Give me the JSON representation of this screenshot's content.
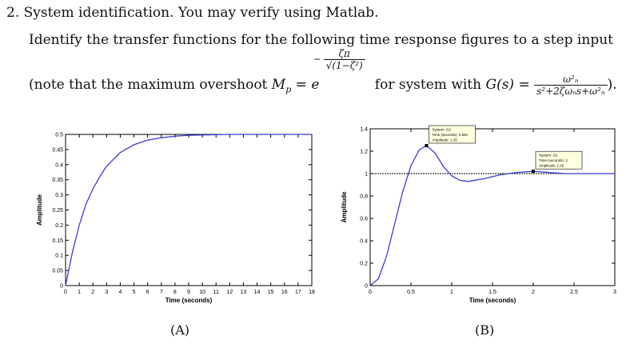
{
  "question": {
    "title": "2. System identification. You may verify using Matlab.",
    "subtitle": "Identify the transfer functions for the following time response figures to a step input",
    "note_prefix": "(note that the maximum overshoot ",
    "mp_symbol": "M",
    "mp_subscript": "p",
    "equals_e": "= e",
    "exponent_numerator": "ζπ",
    "exponent_denominator": "√(1−ζ²)",
    "exponent_sign": "−",
    "for_system": " for system with ",
    "gs": "G(s) =",
    "tf_numerator": "ω²ₙ",
    "tf_denominator": "s²+2ζωₙs+ω²ₙ",
    "note_suffix": ")."
  },
  "chart_data": [
    {
      "type": "line",
      "caption": "(A)",
      "xlabel": "Time (seconds)",
      "ylabel": "Amplitude",
      "xlim": [
        0,
        18
      ],
      "ylim": [
        0,
        0.5
      ],
      "xticks": [
        "0",
        "1",
        "2",
        "3",
        "4",
        "5",
        "6",
        "7",
        "8",
        "9",
        "10",
        "11",
        "12",
        "13",
        "14",
        "15",
        "16",
        "17",
        "18"
      ],
      "yticks": [
        "0",
        "0.05",
        "0.1",
        "0.15",
        "0.2",
        "0.25",
        "0.3",
        "0.35",
        "0.4",
        "0.45",
        "0.5"
      ],
      "series": [
        {
          "color": "#3b3bd6",
          "x": [
            0,
            0.5,
            1,
            1.5,
            2,
            2.5,
            3,
            4,
            5,
            6,
            7,
            8,
            9,
            10,
            12,
            14,
            18
          ],
          "y": [
            0,
            0.11,
            0.2,
            0.27,
            0.32,
            0.36,
            0.395,
            0.44,
            0.466,
            0.481,
            0.489,
            0.494,
            0.497,
            0.498,
            0.5,
            0.5,
            0.5
          ]
        }
      ]
    },
    {
      "type": "line",
      "caption": "(B)",
      "xlabel": "Time (seconds)",
      "ylabel": "Amplitude",
      "xlim": [
        0,
        3
      ],
      "ylim": [
        0,
        1.4
      ],
      "xticks": [
        "0",
        "0.5",
        "1",
        "1.5",
        "2",
        "2.5",
        "3"
      ],
      "yticks": [
        "0",
        "0.2",
        "0.4",
        "0.6",
        "0.8",
        "1",
        "1.2",
        "1.4"
      ],
      "reference_line": 1,
      "series": [
        {
          "color": "#3b3bd6",
          "x": [
            0,
            0.1,
            0.2,
            0.3,
            0.4,
            0.5,
            0.6,
            0.691,
            0.8,
            0.9,
            1.0,
            1.1,
            1.2,
            1.4,
            1.6,
            1.8,
            2.0,
            2.2,
            2.4,
            2.6,
            3.0
          ],
          "y": [
            0,
            0.06,
            0.26,
            0.55,
            0.84,
            1.07,
            1.21,
            1.25,
            1.18,
            1.06,
            0.98,
            0.94,
            0.93,
            0.955,
            0.99,
            1.01,
            1.02,
            1.01,
            1.0,
            1.0,
            1.0
          ]
        }
      ],
      "annotations": [
        {
          "x": 0.691,
          "y": 1.25,
          "lines": [
            "System: G2",
            "Time (seconds): 0.691",
            "Amplitude: 1.25"
          ]
        },
        {
          "x": 2,
          "y": 1.02,
          "lines": [
            "System: G2",
            "Time (seconds): 2",
            "Amplitude: 1.02"
          ]
        }
      ]
    }
  ]
}
